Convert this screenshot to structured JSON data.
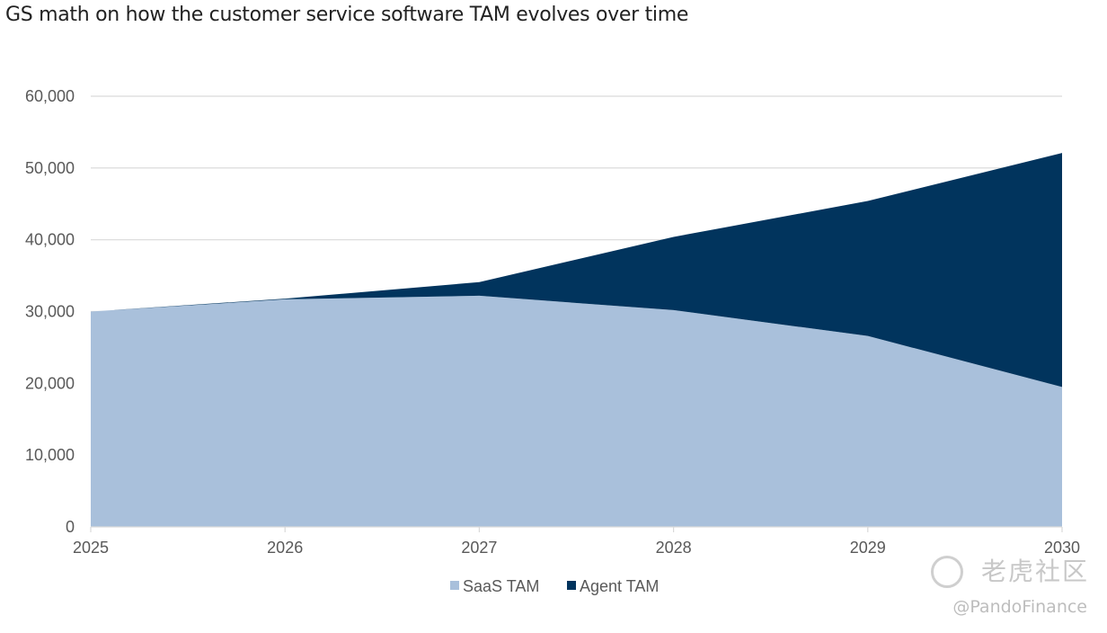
{
  "title": "GS math on how the customer service software TAM evolves over time",
  "watermark": {
    "line1": "老虎社区",
    "line2": "@PandoFinance",
    "icon": "tiger-logo-icon"
  },
  "colors": {
    "saas": "#a9c0db",
    "agent": "#01345d",
    "grid": "#d9d9d9",
    "text": "#595959"
  },
  "chart_data": {
    "type": "area",
    "stacked": true,
    "title": "GS math on how the customer service software TAM evolves over time",
    "xlabel": "",
    "ylabel": "",
    "x": [
      "2025",
      "2026",
      "2027",
      "2028",
      "2029",
      "2030"
    ],
    "series": [
      {
        "name": "SaaS TAM",
        "values": [
          30000,
          31700,
          32200,
          30200,
          26600,
          19500
        ]
      },
      {
        "name": "Agent TAM",
        "values": [
          0,
          100,
          1900,
          10200,
          18800,
          32600
        ]
      }
    ],
    "ylim": [
      0,
      60000
    ],
    "yticks": [
      0,
      10000,
      20000,
      30000,
      40000,
      50000,
      60000
    ],
    "ytick_labels": [
      "0",
      "10,000",
      "20,000",
      "30,000",
      "40,000",
      "50,000",
      "60,000"
    ],
    "grid": true,
    "legend": {
      "position": "bottom",
      "entries": [
        "SaaS TAM",
        "Agent TAM"
      ]
    }
  }
}
